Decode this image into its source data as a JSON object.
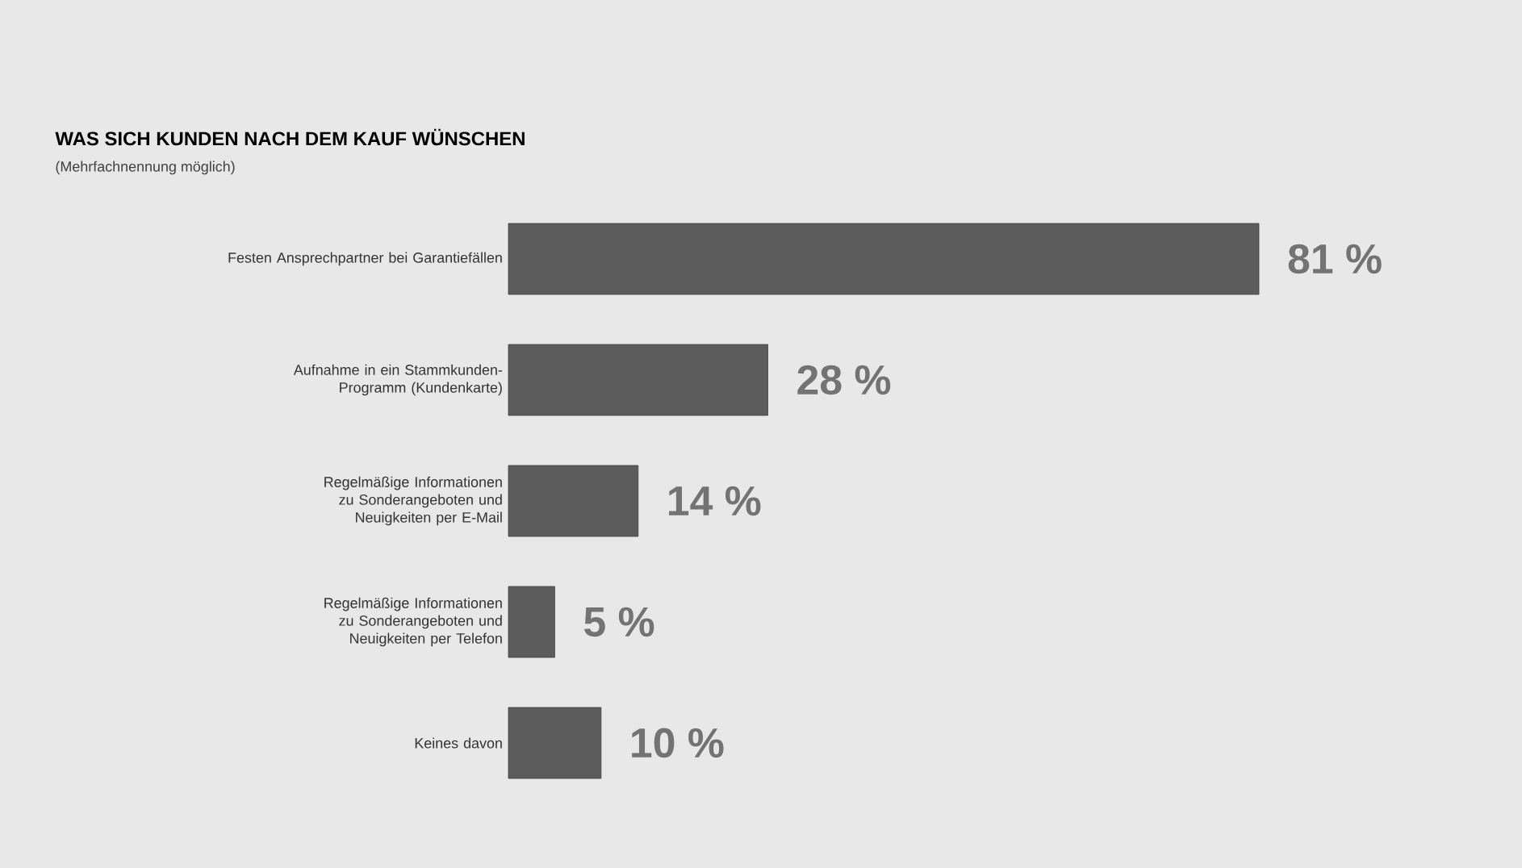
{
  "chart_data": {
    "type": "bar",
    "orientation": "horizontal",
    "title": "WAS SICH KUNDEN NACH DEM KAUF WÜNSCHEN",
    "subtitle": "(Mehrfachnennung möglich)",
    "categories": [
      "Festen Ansprechpartner bei Garantiefällen",
      "Aufnahme in ein Stammkunden-Programm (Kundenkarte)",
      "Regelmäßige Informationen zu Sonderangeboten und Neuigkeiten per E-Mail",
      "Regelmäßige Informationen zu Sonderangeboten und Neuigkeiten per Telefon",
      "Keines davon"
    ],
    "values": [
      81,
      28,
      14,
      5,
      10
    ],
    "value_labels": [
      "81 %",
      "28 %",
      "14 %",
      "5 %",
      "10 %"
    ],
    "color": "#5c5c5c",
    "tick_labels": "y"
  }
}
